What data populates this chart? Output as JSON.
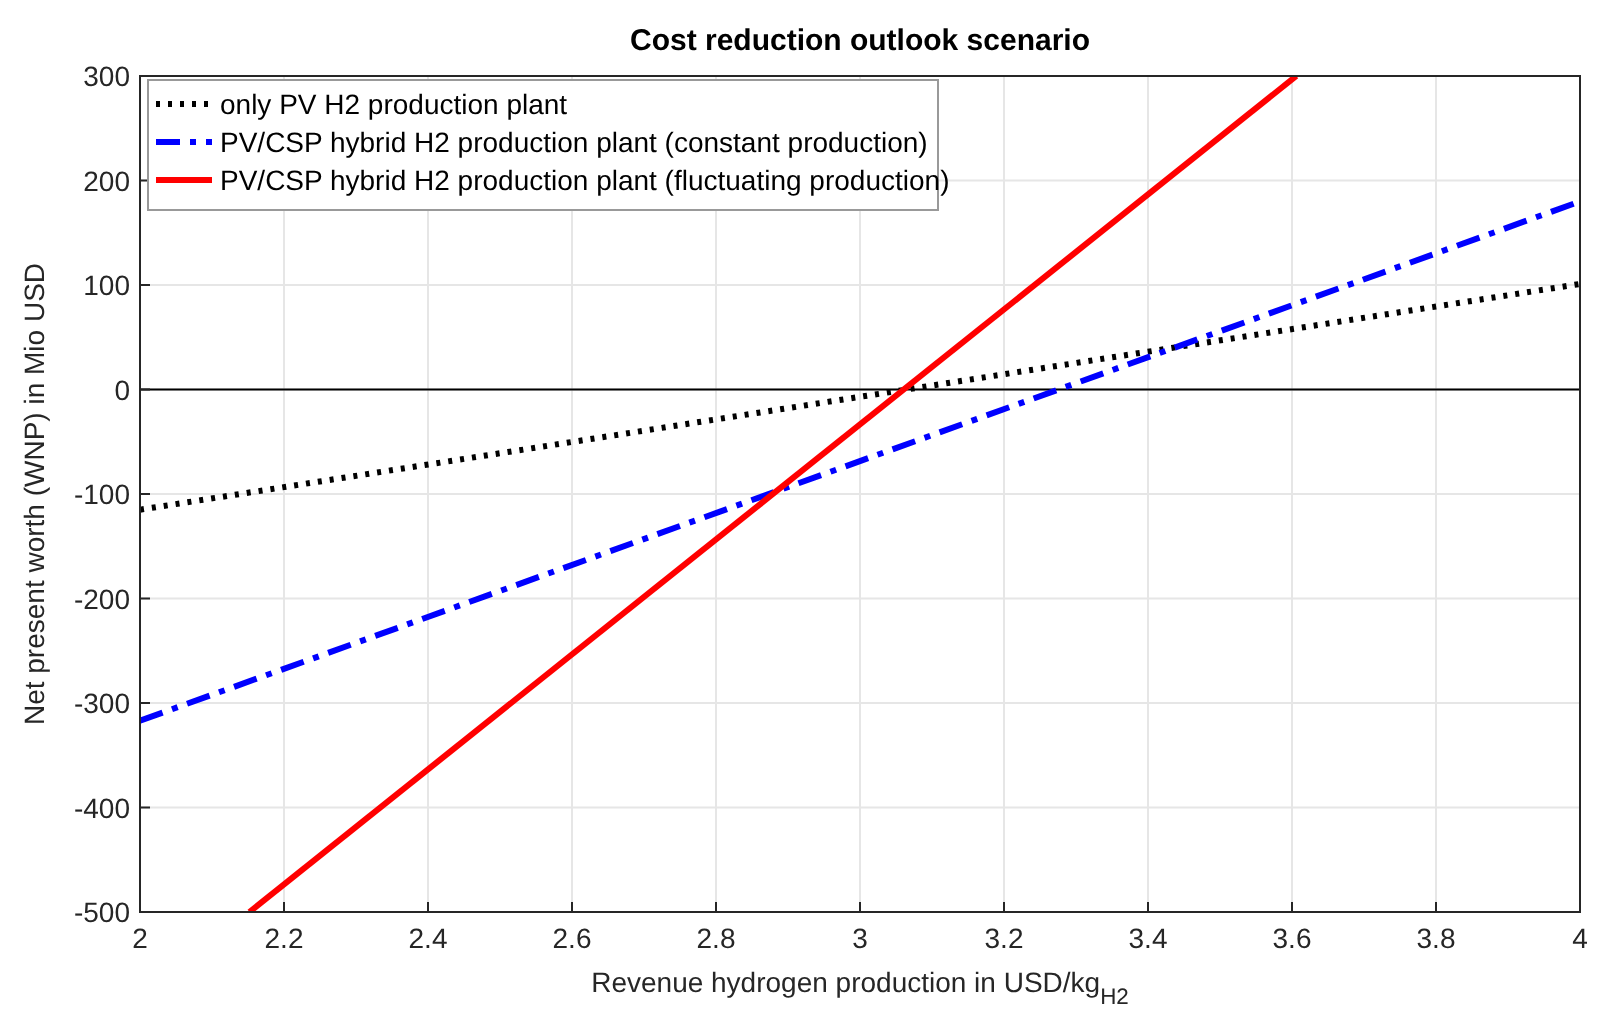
{
  "chart_data": {
    "type": "line",
    "title": "Cost reduction outlook scenario",
    "xlabel": "Revenue hydrogen production in USD/kg$_{H2}$",
    "ylabel": "Net present worth (WNP) in Mio USD",
    "xlim": [
      2,
      4
    ],
    "xticks": [
      2,
      2.2,
      2.4,
      2.6,
      2.8,
      3,
      3.2,
      3.4,
      3.6,
      3.8,
      4
    ],
    "ylim": [
      -500,
      300
    ],
    "yticks": [
      -500,
      -400,
      -300,
      -200,
      -100,
      0,
      100,
      200,
      300
    ],
    "grid": true,
    "legend": "top left",
    "ref_lines": [
      {
        "axis": "y",
        "value": 0,
        "color": "#000000",
        "line_style": "solid"
      }
    ],
    "series": [
      {
        "name": "only PV H2 production plant",
        "color": "#000000",
        "line_style": "dotted",
        "x": [
          2,
          4
        ],
        "values": [
          -115,
          101
        ]
      },
      {
        "name": "PV/CSP hybrid H2 production plant (constant production)",
        "color": "#0000ff",
        "line_style": "dashed",
        "x": [
          2,
          4
        ],
        "values": [
          -317,
          180
        ]
      },
      {
        "name": "PV/CSP hybrid H2 production plant (fluctuating production)",
        "color": "#ff0000",
        "line_style": "solid",
        "x": [
          2.152,
          3.606
        ],
        "values": [
          -500,
          300
        ]
      }
    ]
  }
}
